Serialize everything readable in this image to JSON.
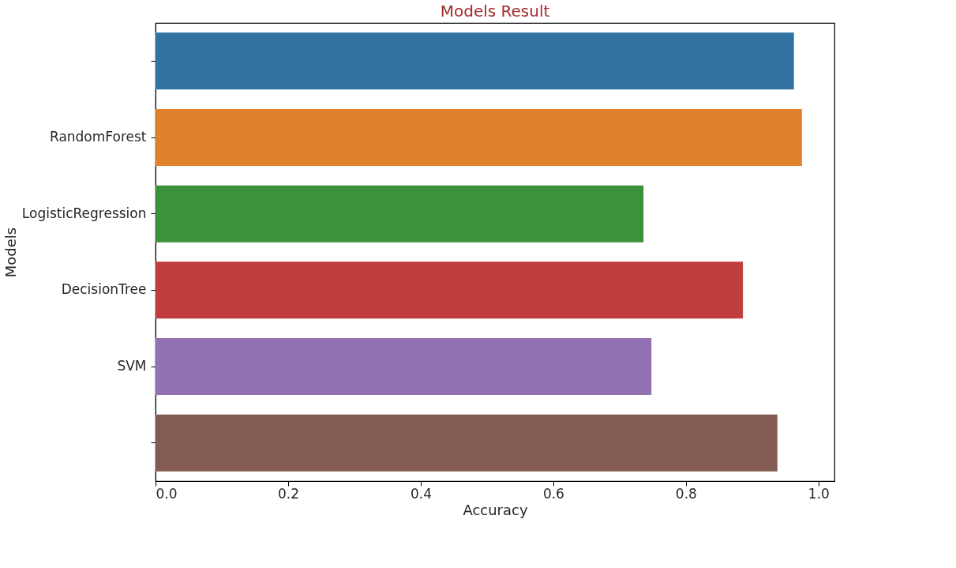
{
  "chart_data": {
    "type": "bar",
    "orientation": "horizontal",
    "title": "Models Result",
    "xlabel": "Accuracy",
    "ylabel": "Models",
    "categories": [
      null,
      "RandomForest",
      "LogisticRegression",
      "DecisionTree",
      "SVM",
      null
    ],
    "values": [
      0.963,
      0.975,
      0.736,
      0.886,
      0.748,
      0.938
    ],
    "colors": [
      "#3274a1",
      "#e1812c",
      "#3a923a",
      "#c03d3e",
      "#9372b2",
      "#845b53"
    ],
    "xlim": [
      0,
      1.024
    ],
    "xticks": [
      {
        "value": 0,
        "label": "0.0"
      },
      0.2,
      0.4,
      0.6,
      0.8,
      {
        "value": 1,
        "label": "1.0"
      }
    ],
    "grid": false
  }
}
